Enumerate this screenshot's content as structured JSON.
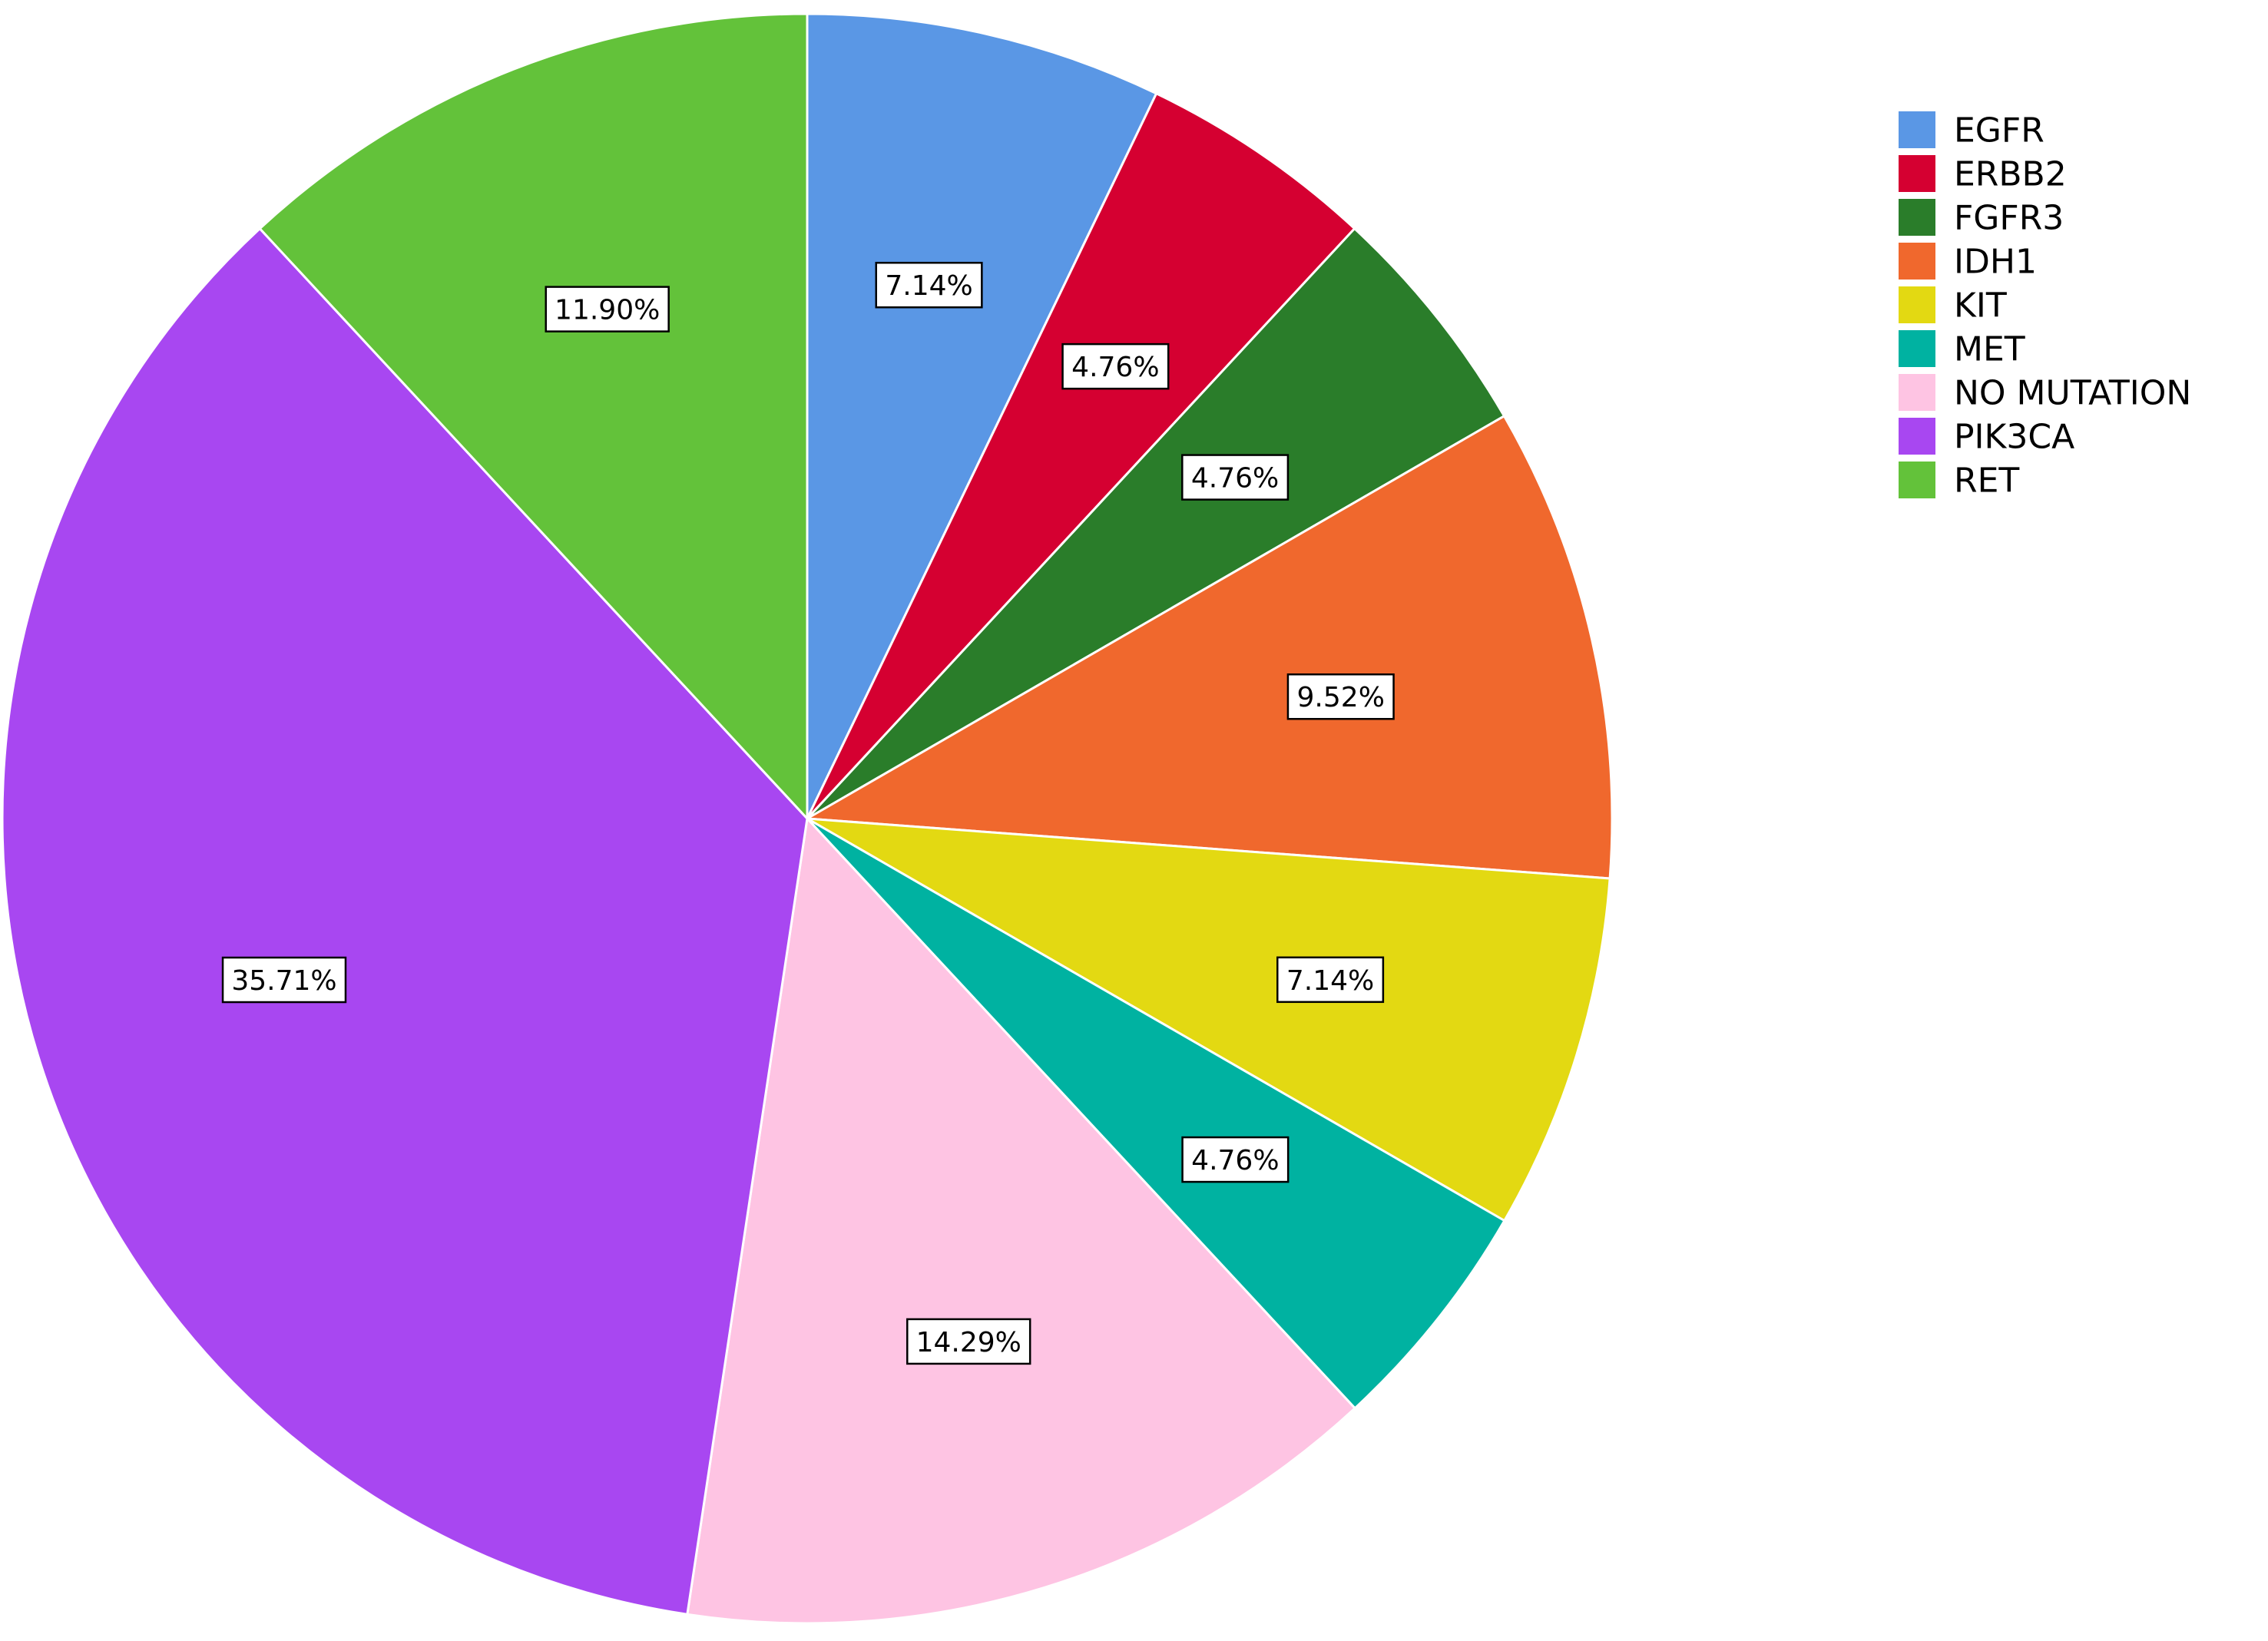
{
  "chart_data": {
    "type": "pie",
    "title": "",
    "legend_position": "top-right",
    "slices": [
      {
        "label": "EGFR",
        "value": 7.14,
        "display": "7.14%",
        "color": "#5A97E5"
      },
      {
        "label": "ERBB2",
        "value": 4.76,
        "display": "4.76%",
        "color": "#D50031"
      },
      {
        "label": "FGFR3",
        "value": 4.76,
        "display": "4.76%",
        "color": "#2A7D2A"
      },
      {
        "label": "IDH1",
        "value": 9.52,
        "display": "9.52%",
        "color": "#F0682D"
      },
      {
        "label": "KIT",
        "value": 7.14,
        "display": "7.14%",
        "color": "#E3D912"
      },
      {
        "label": "MET",
        "value": 4.76,
        "display": "4.76%",
        "color": "#00B2A1"
      },
      {
        "label": "NO MUTATION",
        "value": 14.29,
        "display": "14.29%",
        "color": "#FEC4E3"
      },
      {
        "label": "PIK3CA",
        "value": 35.71,
        "display": "35.71%",
        "color": "#A847F1"
      },
      {
        "label": "RET",
        "value": 11.9,
        "display": "11.90%",
        "color": "#63C23A"
      }
    ]
  }
}
